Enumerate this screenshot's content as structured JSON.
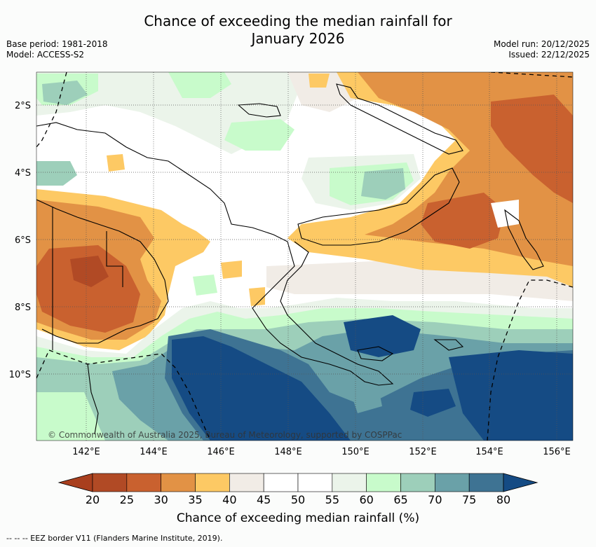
{
  "header": {
    "title_line1": "Chance of exceeding the median rainfall for",
    "title_line2": "January 2026",
    "base_period": "Base period: 1981-2018",
    "model": "Model: ACCESS-S2",
    "model_run": "Model run: 20/12/2025",
    "issued": "Issued: 22/12/2025"
  },
  "map": {
    "lat_labels": [
      "2°S",
      "4°S",
      "6°S",
      "8°S",
      "10°S"
    ],
    "lon_labels": [
      "142°E",
      "144°E",
      "146°E",
      "148°E",
      "150°E",
      "152°E",
      "154°E",
      "156°E"
    ],
    "copyright": "© Commonwealth of Australia 2025, Bureau of Meteorology, supported by COSPPac"
  },
  "colorbar": {
    "ticks": [
      "20",
      "25",
      "30",
      "35",
      "40",
      "45",
      "50",
      "55",
      "60",
      "65",
      "70",
      "75",
      "80"
    ],
    "colors": [
      "#a93f1e",
      "#b14a25",
      "#c9612f",
      "#e29245",
      "#fdc964",
      "#f1ece6",
      "#ffffff",
      "#ffffff",
      "#ebf4ea",
      "#c8fbcb",
      "#9dcfba",
      "#6aa1a8",
      "#3e7393",
      "#154b84"
    ],
    "label": "Chance of exceeding median rainfall (%)"
  },
  "footer": {
    "legend": "-- -- -- EEZ border V11 (Flanders Marine Institute, 2019)."
  }
}
